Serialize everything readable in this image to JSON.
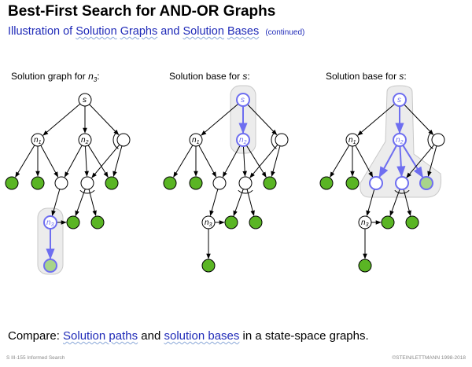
{
  "header": {
    "title": "Best-First Search for AND-OR Graphs",
    "subtitle_parts": [
      "Illustration of ",
      "Solution",
      " ",
      "Graphs",
      " and ",
      "Solution",
      " ",
      "Bases"
    ],
    "subtitle_note": "(continued)"
  },
  "panels": [
    {
      "label_text": "Solution graph for ",
      "label_var": "n",
      "label_sub": "3",
      "label_end": ":"
    },
    {
      "label_text": "Solution base for ",
      "label_var": "s",
      "label_sub": "",
      "label_end": ":"
    },
    {
      "label_text": "Solution base for ",
      "label_var": "s",
      "label_sub": "",
      "label_end": ":"
    }
  ],
  "node_labels": {
    "s": "s",
    "n1": "n",
    "n1_sub": "1",
    "n2": "n",
    "n2_sub": "2",
    "n3": "n",
    "n3_sub": "3"
  },
  "compare": {
    "prefix": "Compare: ",
    "link1": "Solution paths",
    "middle": " and ",
    "link2": "solution bases",
    "suffix": " in a state-space graphs."
  },
  "footer": {
    "left": "S III-155   Informed Search",
    "right": "©STEIN/LETTMANN 1998-2018"
  },
  "colors": {
    "leaf_green": "#5ab524",
    "highlight_blue": "#6e6ef0",
    "faded_green": "#a8d48a",
    "shade": "#ececec"
  }
}
